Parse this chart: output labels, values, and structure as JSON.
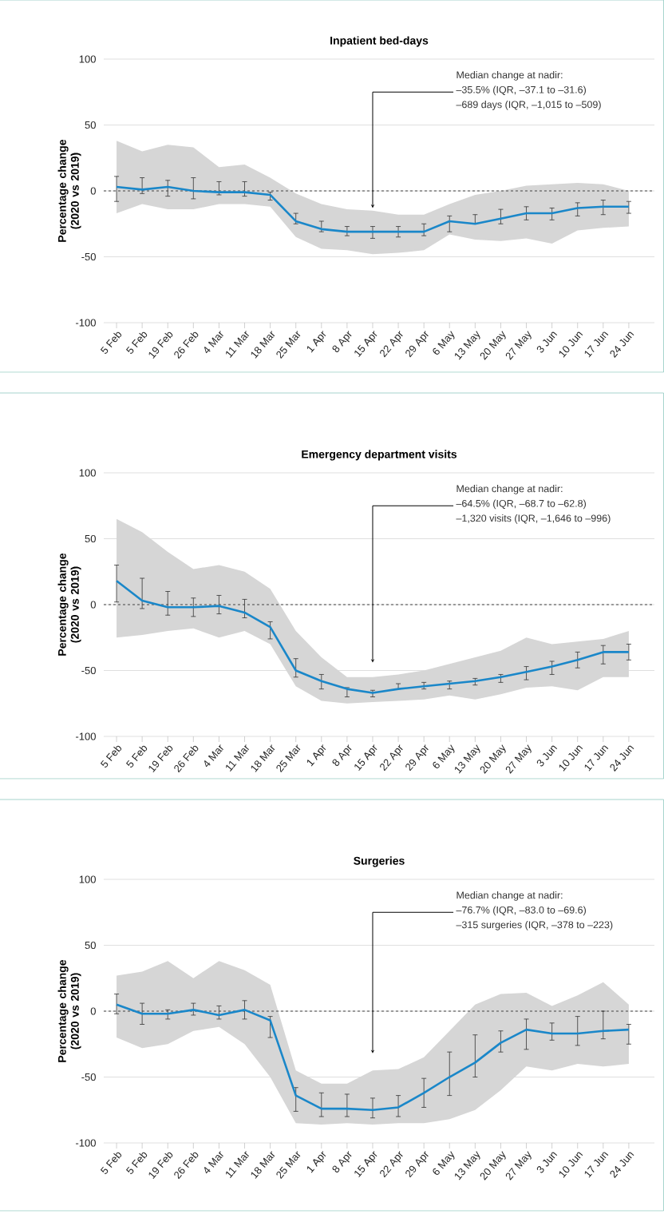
{
  "chart_data": [
    {
      "type": "line",
      "title": "Inpatient bed-days",
      "ylabel": "Percentage change (2020 vs 2019)",
      "categories": [
        "5 Feb",
        "5 Feb",
        "19 Feb",
        "26 Feb",
        "4 Mar",
        "11 Mar",
        "18 Mar",
        "25 Mar",
        "1 Apr",
        "8 Apr",
        "15 Apr",
        "22 Apr",
        "29 Apr",
        "6 May",
        "13 May",
        "20 May",
        "27 May",
        "3 Jun",
        "10 Jun",
        "17 Jun",
        "24 Jun"
      ],
      "series": [
        {
          "color": "#1a87c9",
          "values": [
            3,
            1,
            3,
            0,
            -1,
            -1,
            -3,
            -23,
            -29,
            -31,
            -31,
            -31,
            -31,
            -23,
            -25,
            -21,
            -17,
            -17,
            -13,
            -12,
            -12
          ],
          "errors": [
            [
              -8,
              11
            ],
            [
              -2,
              10
            ],
            [
              -4,
              8
            ],
            [
              -6,
              10
            ],
            [
              -3,
              7
            ],
            [
              -4,
              7
            ],
            [
              -7,
              -1
            ],
            [
              -25,
              -17
            ],
            [
              -31,
              -23
            ],
            [
              -34,
              -27
            ],
            [
              -36,
              -27
            ],
            [
              -35,
              -27
            ],
            [
              -34,
              -25
            ],
            [
              -31,
              -19
            ],
            [
              -25,
              -18
            ],
            [
              -25,
              -14
            ],
            [
              -22,
              -12
            ],
            [
              -22,
              -13
            ],
            [
              -19,
              -9
            ],
            [
              -18,
              -7
            ],
            [
              -17,
              -8
            ]
          ],
          "upper": [
            38,
            30,
            35,
            33,
            18,
            20,
            10,
            -2,
            -10,
            -14,
            -15,
            -18,
            -18,
            -10,
            -3,
            0,
            4,
            5,
            6,
            5,
            0
          ],
          "lower": [
            -17,
            -10,
            -14,
            -14,
            -10,
            -10,
            -12,
            -35,
            -44,
            -45,
            -48,
            -47,
            -45,
            -33,
            -37,
            -38,
            -36,
            -40,
            -30,
            -28,
            -27
          ]
        }
      ],
      "ylim": [
        -100,
        100
      ],
      "yticks": [
        -100,
        -50,
        0,
        50,
        100
      ],
      "grid": "y",
      "ref_lines": [
        {
          "axis": "y",
          "value": 0,
          "color": "#333333",
          "line_style": "dashed"
        }
      ],
      "annotations": [
        "Median change at nadir:",
        "–35.5% (IQR, –37.1 to –31.6)",
        "–689 days (IQR, –1,015 to –509)"
      ]
    },
    {
      "type": "line",
      "title": "Emergency department visits",
      "ylabel": "Percentage change (2020 vs 2019)",
      "categories": [
        "5 Feb",
        "5 Feb",
        "19 Feb",
        "26 Feb",
        "4 Mar",
        "11 Mar",
        "18 Mar",
        "25 Mar",
        "1 Apr",
        "8 Apr",
        "15 Apr",
        "22 Apr",
        "29 Apr",
        "6 May",
        "13 May",
        "20 May",
        "27 May",
        "3 Jun",
        "10 Jun",
        "17 Jun",
        "24 Jun"
      ],
      "series": [
        {
          "color": "#1a87c9",
          "values": [
            18,
            3,
            -2,
            -2,
            -1,
            -6,
            -17,
            -50,
            -58,
            -64,
            -67,
            -64,
            -62,
            -60,
            -58,
            -55,
            -51,
            -47,
            -42,
            -36,
            -36
          ],
          "errors": [
            [
              2,
              30
            ],
            [
              -3,
              20
            ],
            [
              -8,
              10
            ],
            [
              -9,
              5
            ],
            [
              -7,
              7
            ],
            [
              -10,
              4
            ],
            [
              -26,
              -13
            ],
            [
              -55,
              -41
            ],
            [
              -64,
              -53
            ],
            [
              -70,
              -63
            ],
            [
              -70,
              -65
            ],
            [
              -64,
              -60
            ],
            [
              -64,
              -59
            ],
            [
              -64,
              -58
            ],
            [
              -61,
              -56
            ],
            [
              -59,
              -53
            ],
            [
              -57,
              -47
            ],
            [
              -53,
              -43
            ],
            [
              -48,
              -36
            ],
            [
              -45,
              -31
            ],
            [
              -42,
              -30
            ]
          ],
          "upper": [
            65,
            55,
            40,
            27,
            30,
            25,
            12,
            -20,
            -40,
            -55,
            -55,
            -53,
            -50,
            -45,
            -40,
            -35,
            -25,
            -30,
            -28,
            -26,
            -20
          ],
          "lower": [
            -25,
            -23,
            -20,
            -18,
            -25,
            -20,
            -30,
            -62,
            -73,
            -75,
            -74,
            -73,
            -72,
            -69,
            -72,
            -68,
            -63,
            -62,
            -65,
            -55,
            -55
          ]
        }
      ],
      "ylim": [
        -100,
        100
      ],
      "yticks": [
        -100,
        -50,
        0,
        50,
        100
      ],
      "grid": "y",
      "ref_lines": [
        {
          "axis": "y",
          "value": 0,
          "color": "#333333",
          "line_style": "dashed"
        }
      ],
      "annotations": [
        "Median change at nadir:",
        "–64.5% (IQR, –68.7 to –62.8)",
        "–1,320 visits (IQR, –1,646 to –996)"
      ]
    },
    {
      "type": "line",
      "title": "Surgeries",
      "ylabel": "Percentage change (2020 vs 2019)",
      "categories": [
        "5 Feb",
        "5 Feb",
        "19 Feb",
        "26 Feb",
        "4 Mar",
        "11 Mar",
        "18 Mar",
        "25 Mar",
        "1 Apr",
        "8 Apr",
        "15 Apr",
        "22 Apr",
        "29 Apr",
        "6 May",
        "13 May",
        "20 May",
        "27 May",
        "3 Jun",
        "10 Jun",
        "17 Jun",
        "24 Jun"
      ],
      "series": [
        {
          "color": "#1a87c9",
          "values": [
            5,
            -2,
            -2,
            1,
            -3,
            1,
            -7,
            -64,
            -74,
            -74,
            -75,
            -73,
            -62,
            -50,
            -39,
            -24,
            -14,
            -17,
            -17,
            -15,
            -14
          ],
          "errors": [
            [
              -2,
              13
            ],
            [
              -10,
              6
            ],
            [
              -6,
              1
            ],
            [
              -3,
              6
            ],
            [
              -6,
              4
            ],
            [
              -6,
              8
            ],
            [
              -20,
              -4
            ],
            [
              -76,
              -58
            ],
            [
              -80,
              -62
            ],
            [
              -80,
              -63
            ],
            [
              -81,
              -66
            ],
            [
              -80,
              -64
            ],
            [
              -73,
              -51
            ],
            [
              -64,
              -31
            ],
            [
              -50,
              -18
            ],
            [
              -31,
              -15
            ],
            [
              -29,
              -6
            ],
            [
              -22,
              -9
            ],
            [
              -26,
              -4
            ],
            [
              -21,
              0
            ],
            [
              -25,
              -10
            ]
          ],
          "upper": [
            27,
            30,
            38,
            25,
            38,
            31,
            20,
            -45,
            -55,
            -55,
            -45,
            -44,
            -35,
            -15,
            5,
            13,
            14,
            4,
            12,
            22,
            5
          ],
          "lower": [
            -20,
            -28,
            -25,
            -15,
            -12,
            -25,
            -50,
            -85,
            -86,
            -85,
            -86,
            -85,
            -85,
            -82,
            -75,
            -60,
            -42,
            -45,
            -40,
            -42,
            -40
          ]
        }
      ],
      "ylim": [
        -100,
        100
      ],
      "yticks": [
        -100,
        -50,
        0,
        50,
        100
      ],
      "grid": "y",
      "ref_lines": [
        {
          "axis": "y",
          "value": 0,
          "color": "#333333",
          "line_style": "dashed"
        }
      ],
      "annotations": [
        "Median change at nadir:",
        "–76.7% (IQR, –83.0 to –69.6)",
        "–315 surgeries (IQR, –378 to –223)"
      ]
    }
  ]
}
